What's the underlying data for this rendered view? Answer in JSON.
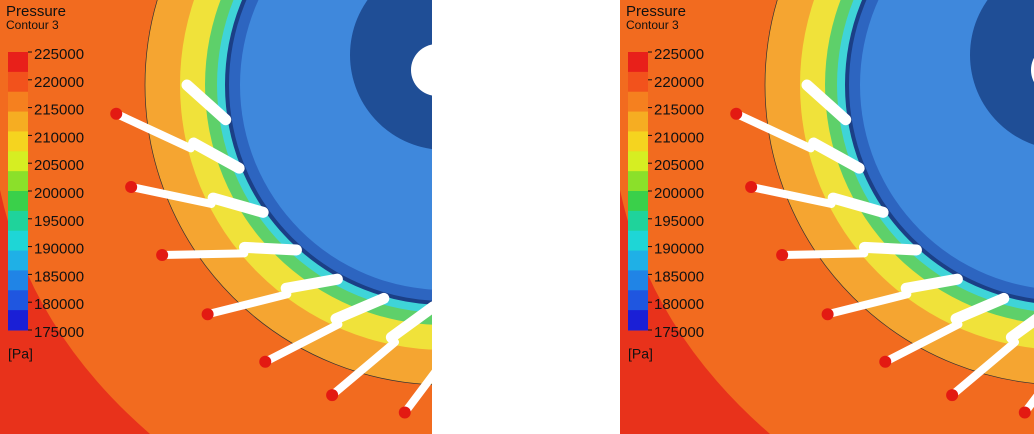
{
  "panels": [
    {
      "legend": {
        "title": "Pressure",
        "subtitle": "Contour 3",
        "ticks": [
          225000,
          220000,
          215000,
          210000,
          205000,
          200000,
          195000,
          190000,
          185000,
          180000,
          175000
        ],
        "unit": "[Pa]"
      }
    },
    {
      "legend": {
        "title": "Pressure",
        "subtitle": "Contour 3",
        "ticks": [
          225000,
          220000,
          215000,
          210000,
          205000,
          200000,
          195000,
          190000,
          185000,
          180000,
          175000
        ],
        "unit": "[Pa]"
      }
    }
  ]
}
